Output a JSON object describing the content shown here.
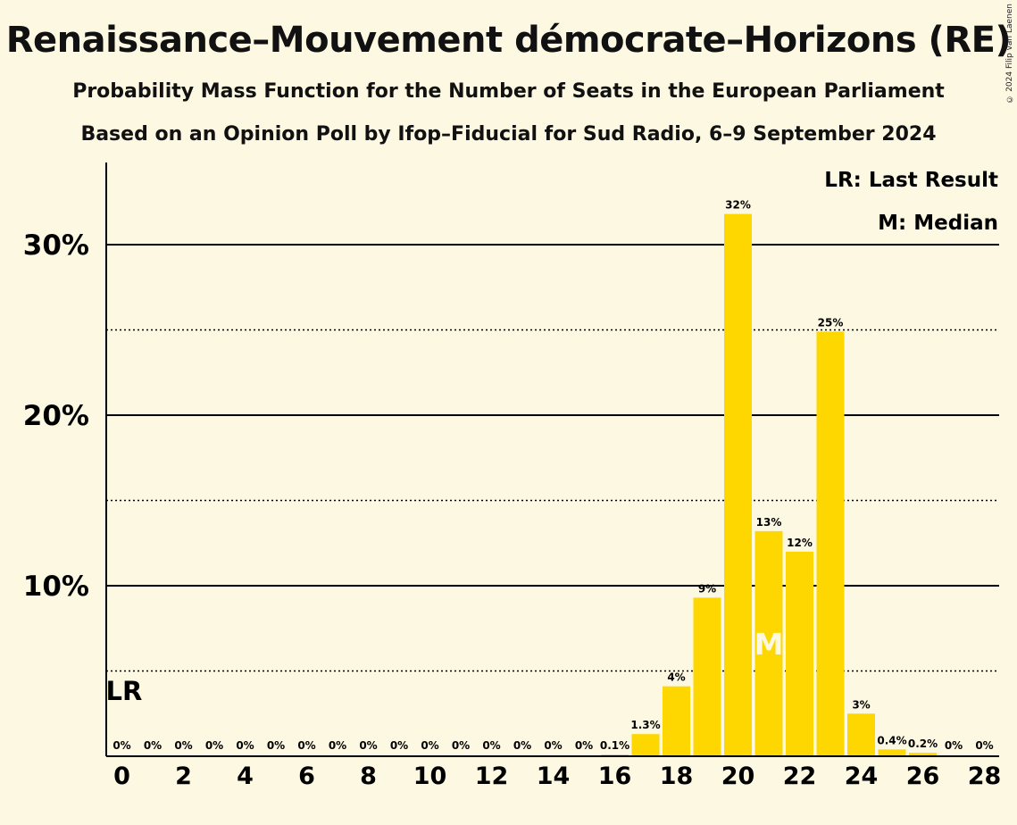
{
  "header": {
    "title": "Renaissance–Mouvement démocrate–Horizons (RE)",
    "subtitle": "Probability Mass Function for the Number of Seats in the European Parliament",
    "source": "Based on an Opinion Poll by Ifop–Fiducial for Sud Radio, 6–9 September 2024",
    "copyright": "© 2024 Filip van Laenen"
  },
  "legend": {
    "last_result": "LR: Last Result",
    "median": "M: Median"
  },
  "markers": {
    "last_result_label": "LR",
    "last_result_seat": 0,
    "median_label": "M",
    "median_seat": 21
  },
  "colors": {
    "background": "#fdf8e2",
    "bar": "#ffd700",
    "axis": "#000000",
    "median_text": "#fdf8e2"
  },
  "chart_data": {
    "type": "bar",
    "x": [
      0,
      1,
      2,
      3,
      4,
      5,
      6,
      7,
      8,
      9,
      10,
      11,
      12,
      13,
      14,
      15,
      16,
      17,
      18,
      19,
      20,
      21,
      22,
      23,
      24,
      25,
      26,
      27,
      28
    ],
    "values": [
      0,
      0,
      0,
      0,
      0,
      0,
      0,
      0,
      0,
      0,
      0,
      0,
      0,
      0,
      0,
      0,
      0.1,
      1.3,
      4.1,
      9.3,
      31.8,
      13.2,
      12.0,
      24.9,
      2.5,
      0.4,
      0.2,
      0,
      0
    ],
    "data_labels": [
      "0%",
      "0%",
      "0%",
      "0%",
      "0%",
      "0%",
      "0%",
      "0%",
      "0%",
      "0%",
      "0%",
      "0%",
      "0%",
      "0%",
      "0%",
      "0%",
      "0.1%",
      "1.3%",
      "4%",
      "9%",
      "32%",
      "13%",
      "12%",
      "25%",
      "3%",
      "0.4%",
      "0.2%",
      "0%",
      "0%"
    ],
    "x_tick_labels": [
      "0",
      "2",
      "4",
      "6",
      "8",
      "10",
      "12",
      "14",
      "16",
      "18",
      "20",
      "22",
      "24",
      "26",
      "28"
    ],
    "x_tick_values": [
      0,
      2,
      4,
      6,
      8,
      10,
      12,
      14,
      16,
      18,
      20,
      22,
      24,
      26,
      28
    ],
    "y_tick_labels": [
      "10%",
      "20%",
      "30%"
    ],
    "y_tick_values": [
      10,
      20,
      30
    ],
    "y_minor_gridlines": [
      5,
      15,
      25
    ],
    "ylim": [
      0,
      35
    ],
    "unit": "%",
    "grid": true,
    "legend_placement": "top-right"
  }
}
